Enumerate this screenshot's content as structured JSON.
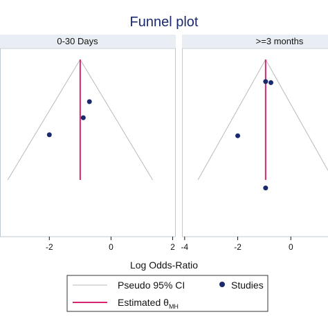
{
  "chart_data": {
    "type": "scatter",
    "title": "Funnel plot",
    "xlabel": "Log Odds-Ratio",
    "colors": {
      "title": "#1a2a6c",
      "strip": "#e8eef3",
      "panel_border": "#bfc9d2",
      "ci_line": "#b9b9b9",
      "estimate_line": "#d6246e",
      "points": "#1a2a6c"
    },
    "legend": {
      "position": "bottom",
      "ci_label": "Pseudo 95% CI",
      "studies_label": "Studies",
      "estimate_label": "Estimated θ",
      "estimate_sub": "MH"
    },
    "panels": [
      {
        "label": "0-30 Days",
        "xlim": [
          -3.6,
          2.1
        ],
        "x_ticks": [
          -2,
          0,
          2
        ],
        "x_tick_labels": [
          "-2",
          "0",
          "2"
        ],
        "estimate": -1.0,
        "funnel_apex_se": 0.0,
        "funnel_base_se": 1.2,
        "funnel_base_x": [
          -3.35,
          1.35
        ],
        "points": [
          {
            "x": -0.7,
            "se": 0.42
          },
          {
            "x": -0.9,
            "se": 0.58
          },
          {
            "x": -2.0,
            "se": 0.75
          }
        ]
      },
      {
        "label": ">=3 months",
        "xlim": [
          -4.1,
          1.4
        ],
        "x_ticks": [
          -4,
          -2,
          0
        ],
        "x_tick_labels": [
          "-4",
          "-2",
          "0"
        ],
        "estimate": -0.95,
        "funnel_apex_se": 0.0,
        "funnel_base_se": 1.2,
        "funnel_base_x": [
          -3.5,
          1.6
        ],
        "points": [
          {
            "x": -0.95,
            "se": 0.22
          },
          {
            "x": -0.75,
            "se": 0.23
          },
          {
            "x": -2.0,
            "se": 0.76
          },
          {
            "x": -0.95,
            "se": 1.28
          }
        ]
      }
    ]
  }
}
